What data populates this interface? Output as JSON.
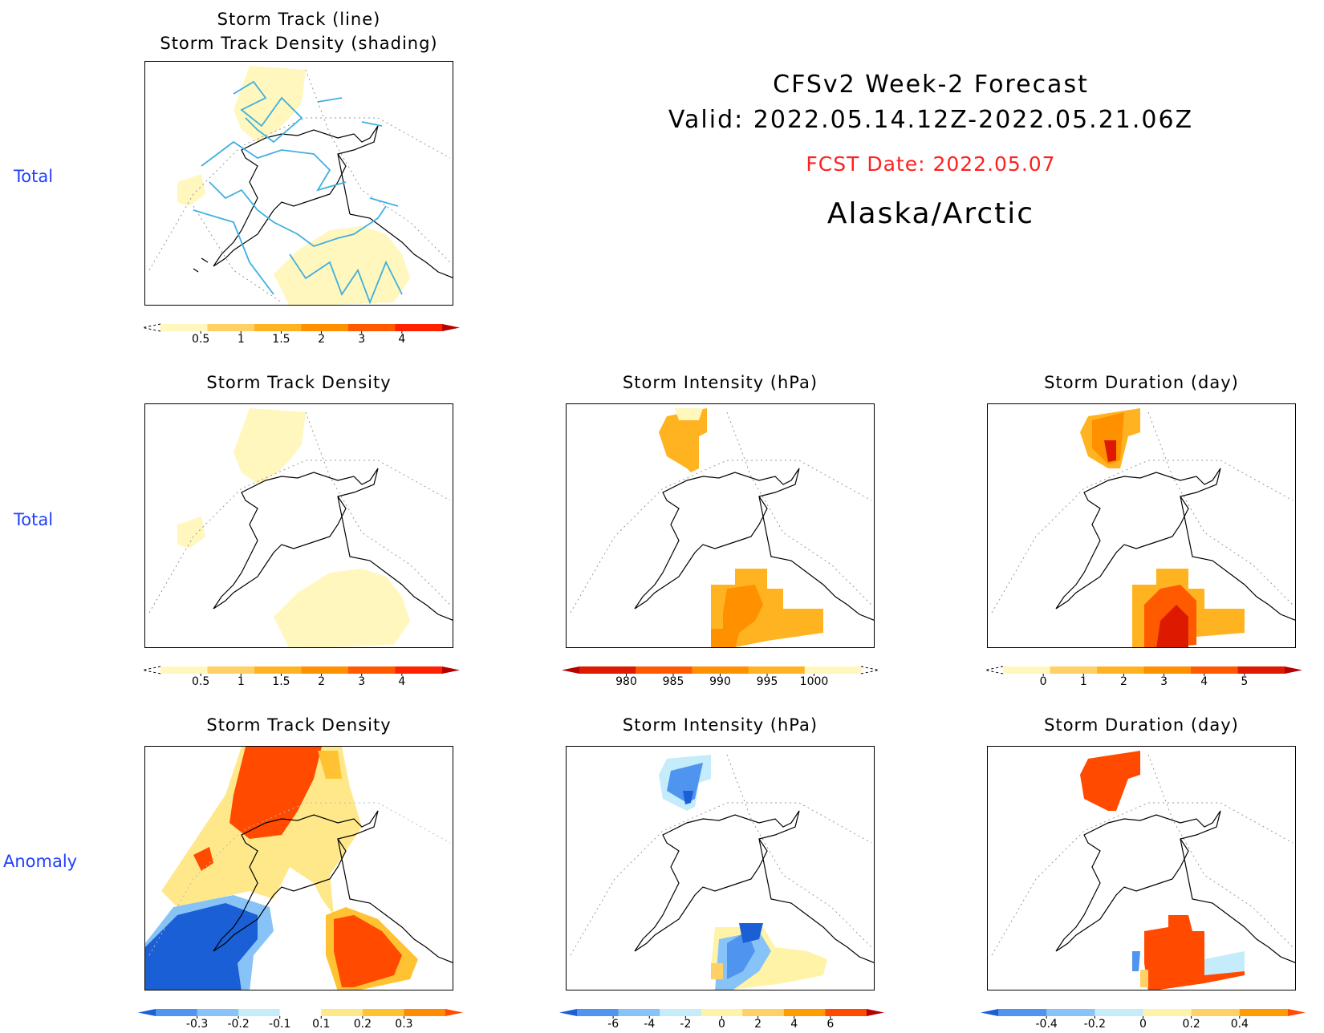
{
  "header": {
    "title_line1": "CFSv2 Week-2 Forecast",
    "title_line2": "Valid: 2022.05.14.12Z-2022.05.21.06Z",
    "fcst_date": "FCST Date: 2022.05.07",
    "region": "Alaska/Arctic"
  },
  "row_labels": {
    "row1": "Total",
    "row2": "Total",
    "row3": "Anomaly"
  },
  "panels": {
    "p1": {
      "title1": "Storm Track (line)",
      "title2": "Storm Track Density (shading)"
    },
    "p2": {
      "title": "Storm Track Density"
    },
    "p3": {
      "title": "Storm Intensity (hPa)"
    },
    "p4": {
      "title": "Storm Duration (day)"
    },
    "p5": {
      "title": "Storm Track Density"
    },
    "p6": {
      "title": "Storm Intensity (hPa)"
    },
    "p7": {
      "title": "Storm Duration (day)"
    }
  },
  "colorbars": {
    "density_total": {
      "labels": [
        "0.5",
        "1",
        "1.5",
        "2",
        "3",
        "4"
      ],
      "colors": [
        "#fff7bd",
        "#ffd066",
        "#ffb321",
        "#ff9000",
        "#ff5a00",
        "#ff2200",
        "#b50000"
      ]
    },
    "intensity_total": {
      "labels": [
        "980",
        "985",
        "990",
        "995",
        "1000"
      ],
      "colors": [
        "#b50000",
        "#dd1a00",
        "#ff5a00",
        "#ff9000",
        "#ffb321",
        "#fff7bd"
      ]
    },
    "duration_total": {
      "labels": [
        "0",
        "1",
        "2",
        "3",
        "4",
        "5"
      ],
      "colors": [
        "#fff7bd",
        "#ffd066",
        "#ffb321",
        "#ff9000",
        "#ff5a00",
        "#dd1a00",
        "#b50000"
      ]
    },
    "density_anom": {
      "labels": [
        "-0.3",
        "-0.2",
        "-0.1",
        "0.1",
        "0.2",
        "0.3"
      ],
      "colors": [
        "#1a5fd6",
        "#4f94ef",
        "#87c3f7",
        "#c4ecfb",
        "#ffffff",
        "#ffe88a",
        "#ffc233",
        "#ff8c00",
        "#ff4a00"
      ]
    },
    "intensity_anom": {
      "labels": [
        "-6",
        "-4",
        "-2",
        "0",
        "2",
        "4",
        "6"
      ],
      "colors": [
        "#1a5fd6",
        "#4f94ef",
        "#87c3f7",
        "#c4ecfb",
        "#fff3a8",
        "#ffd066",
        "#ff9d00",
        "#ff4a00",
        "#b50000"
      ]
    },
    "duration_anom": {
      "labels": [
        "-0.4",
        "-0.2",
        "0",
        "0.2",
        "0.4"
      ],
      "colors": [
        "#1a5fd6",
        "#4f94ef",
        "#87c3f7",
        "#c4ecfb",
        "#fff3a8",
        "#ffd066",
        "#ff9d00",
        "#ff4a00"
      ]
    }
  },
  "colors": {
    "label_blue": "#1f3fff",
    "fcst_red": "#ff2020",
    "track_line": "#33aadd"
  }
}
